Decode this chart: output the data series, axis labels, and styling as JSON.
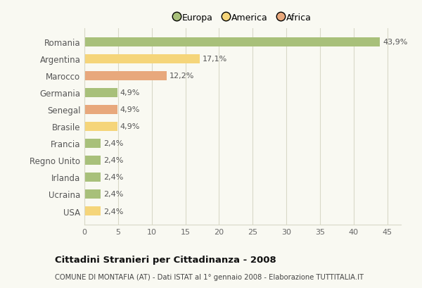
{
  "countries": [
    "Romania",
    "Argentina",
    "Marocco",
    "Germania",
    "Senegal",
    "Brasile",
    "Francia",
    "Regno Unito",
    "Irlanda",
    "Ucraina",
    "USA"
  ],
  "values": [
    43.9,
    17.1,
    12.2,
    4.9,
    4.9,
    4.9,
    2.4,
    2.4,
    2.4,
    2.4,
    2.4
  ],
  "labels": [
    "43,9%",
    "17,1%",
    "12,2%",
    "4,9%",
    "4,9%",
    "4,9%",
    "2,4%",
    "2,4%",
    "2,4%",
    "2,4%",
    "2,4%"
  ],
  "colors": [
    "#a8c07a",
    "#f5d57a",
    "#e8a87c",
    "#a8c07a",
    "#e8a87c",
    "#f5d57a",
    "#a8c07a",
    "#a8c07a",
    "#a8c07a",
    "#a8c07a",
    "#f5d57a"
  ],
  "legend": [
    {
      "label": "Europa",
      "color": "#a8c07a"
    },
    {
      "label": "America",
      "color": "#f5d57a"
    },
    {
      "label": "Africa",
      "color": "#e8a87c"
    }
  ],
  "xlim": [
    0,
    47
  ],
  "xticks": [
    0,
    5,
    10,
    15,
    20,
    25,
    30,
    35,
    40,
    45
  ],
  "title": "Cittadini Stranieri per Cittadinanza - 2008",
  "subtitle": "COMUNE DI MONTAFIA (AT) - Dati ISTAT al 1° gennaio 2008 - Elaborazione TUTTITALIA.IT",
  "background_color": "#f9f9f2",
  "grid_color": "#d8d8c8",
  "bar_height": 0.55,
  "label_fontsize": 8.0,
  "ytick_fontsize": 8.5,
  "xtick_fontsize": 8.0
}
